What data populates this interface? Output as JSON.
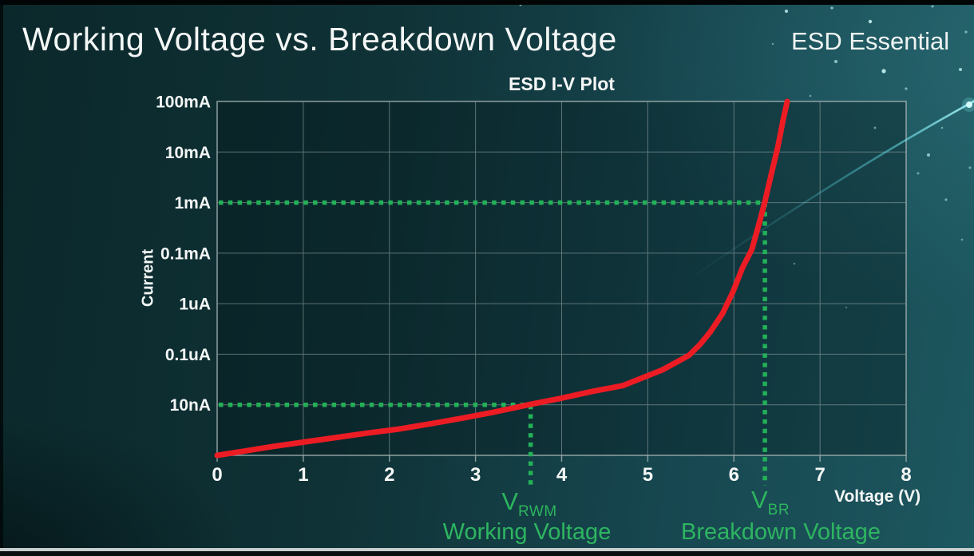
{
  "page": {
    "title": "Working Voltage vs. Breakdown Voltage",
    "brand": "ESD Essential"
  },
  "style": {
    "curve_red": "#ec1c24",
    "marker_green": "#23b158",
    "annotation_text_green": "#2db45e",
    "grid_gray": "#93a3a2",
    "background_teal": "#123e44",
    "text_white": "#f4f7f6",
    "decor_cyan": "#5ad2e0"
  },
  "chart_data": {
    "type": "line",
    "title": "ESD I-V Plot",
    "xlabel": "Voltage (V)",
    "ylabel": "Current",
    "x_ticks": [
      "0",
      "1",
      "2",
      "3",
      "4",
      "5",
      "6",
      "7",
      "8"
    ],
    "x_range": [
      0,
      8
    ],
    "grid": true,
    "y_scale": "log; one gridline per labeled decade, labels listed top to bottom",
    "y_gridline_labels": [
      "100mA",
      "10mA",
      "1mA",
      "0.1mA",
      "1uA",
      "0.1uA",
      "10nA"
    ],
    "series": [
      {
        "name": "ESD protection device I-V curve",
        "color": "#ec1c24",
        "point_format": "[voltage_V, decades_above_bottom_axis]",
        "points": [
          [
            0,
            0
          ],
          [
            0.3,
            0.08
          ],
          [
            0.63,
            0.17
          ],
          [
            1,
            0.26
          ],
          [
            1.37,
            0.35
          ],
          [
            1.74,
            0.44
          ],
          [
            2.11,
            0.52
          ],
          [
            2.5,
            0.63
          ],
          [
            2.86,
            0.74
          ],
          [
            3.2,
            0.85
          ],
          [
            3.64,
            1.01
          ],
          [
            3.97,
            1.12
          ],
          [
            4.34,
            1.26
          ],
          [
            4.71,
            1.38
          ],
          [
            5.17,
            1.69
          ],
          [
            5.48,
            1.98
          ],
          [
            5.61,
            2.2
          ],
          [
            5.73,
            2.45
          ],
          [
            5.87,
            2.81
          ],
          [
            5.99,
            3.24
          ],
          [
            6.1,
            3.71
          ],
          [
            6.21,
            4.08
          ],
          [
            6.3,
            4.63
          ],
          [
            6.36,
            5.02
          ],
          [
            6.43,
            5.53
          ],
          [
            6.51,
            6.1
          ],
          [
            6.57,
            6.62
          ],
          [
            6.62,
            7
          ]
        ]
      }
    ],
    "markers": [
      {
        "id": "vrwm",
        "symbol": "V",
        "subscript": "RWM",
        "caption": "Working Voltage",
        "voltage_V": 3.64,
        "current_level": "10nA",
        "decades_above_bottom": 1,
        "color": "#23b158",
        "style": "dotted"
      },
      {
        "id": "vbr",
        "symbol": "V",
        "subscript": "BR",
        "caption": "Breakdown Voltage",
        "voltage_V": 6.36,
        "current_level": "1mA",
        "decades_above_bottom": 5,
        "color": "#23b158",
        "style": "dotted"
      }
    ]
  }
}
